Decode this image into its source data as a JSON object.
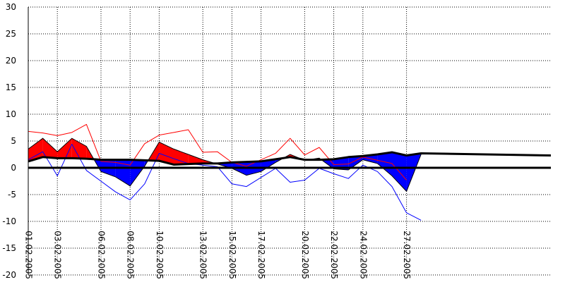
{
  "chart_data": {
    "type": "area",
    "title": "",
    "xlabel": "",
    "ylabel": "",
    "grid": true,
    "ylim": [
      -20,
      30
    ],
    "yticks": [
      -20,
      -15,
      -10,
      -5,
      0,
      5,
      10,
      15,
      20,
      25,
      30
    ],
    "x_tick_labels": [
      {
        "index": 0,
        "label": "01.02.2005"
      },
      {
        "index": 2,
        "label": "03.02.2005"
      },
      {
        "index": 5,
        "label": "06.02.2005"
      },
      {
        "index": 7,
        "label": "08.02.2005"
      },
      {
        "index": 9,
        "label": "10.02.2005"
      },
      {
        "index": 12,
        "label": "13.02.2005"
      },
      {
        "index": 14,
        "label": "15.02.2005"
      },
      {
        "index": 16,
        "label": "17.02.2005"
      },
      {
        "index": 19,
        "label": "20.02.2005"
      },
      {
        "index": 21,
        "label": "22.02.2005"
      },
      {
        "index": 23,
        "label": "24.02.2005"
      },
      {
        "index": 26,
        "label": "27.02.2005"
      }
    ],
    "dates": [
      "01.02.2005",
      "02.02.2005",
      "03.02.2005",
      "04.02.2005",
      "05.02.2005",
      "06.02.2005",
      "07.02.2005",
      "08.02.2005",
      "09.02.2005",
      "10.02.2005",
      "11.02.2005",
      "12.02.2005",
      "13.02.2005",
      "14.02.2005",
      "15.02.2005",
      "16.02.2005",
      "17.02.2005",
      "18.02.2005",
      "19.02.2005",
      "20.02.2005",
      "21.02.2005",
      "22.02.2005",
      "23.02.2005",
      "24.02.2005",
      "25.02.2005",
      "26.02.2005",
      "27.02.2005",
      "28.02.2005"
    ],
    "series": [
      {
        "role": "mean",
        "color": "#000000",
        "values": [
          1.2,
          2.0,
          1.8,
          1.8,
          1.7,
          1.5,
          1.5,
          1.5,
          1.4,
          1.3,
          0.6,
          0.7,
          0.8,
          0.8,
          1.0,
          1.1,
          1.2,
          1.6,
          2.0,
          1.5,
          1.5,
          1.6,
          2.0,
          2.2,
          2.5,
          2.9,
          2.3,
          2.7
        ]
      },
      {
        "role": "daily",
        "values": [
          3.5,
          5.5,
          3.0,
          5.5,
          4.0,
          -0.7,
          -1.7,
          -3.4,
          0.3,
          4.8,
          3.5,
          2.5,
          1.5,
          0.7,
          -0.1,
          -1.4,
          -0.7,
          1.0,
          2.5,
          1.4,
          1.8,
          -0.2,
          -0.4,
          1.5,
          0.8,
          -1.5,
          -4.4,
          2.5
        ]
      },
      {
        "role": "max",
        "color": "#ff0000",
        "values": [
          6.8,
          6.5,
          6.0,
          6.6,
          8.1,
          1.2,
          1.0,
          0.5,
          4.5,
          6.1,
          6.6,
          7.1,
          2.9,
          3.0,
          1.0,
          0.3,
          1.5,
          2.7,
          5.5,
          2.4,
          3.8,
          0.6,
          0.7,
          2.0,
          1.4,
          0.8,
          -2.3,
          null
        ]
      },
      {
        "role": "min",
        "color": "#0000ff",
        "values": [
          1.5,
          3.0,
          -1.5,
          4.4,
          -0.5,
          -2.5,
          -4.5,
          -6.0,
          -3.0,
          2.7,
          1.7,
          0.8,
          0.5,
          0.2,
          -3.0,
          -3.5,
          -1.8,
          -0.1,
          -2.7,
          -2.3,
          -0.1,
          -1.1,
          -2.0,
          0.5,
          -0.7,
          -3.5,
          -8.4,
          -9.8
        ]
      }
    ],
    "fill_colors": {
      "above_mean": "#ff0000",
      "below_mean": "#0000ff"
    }
  }
}
